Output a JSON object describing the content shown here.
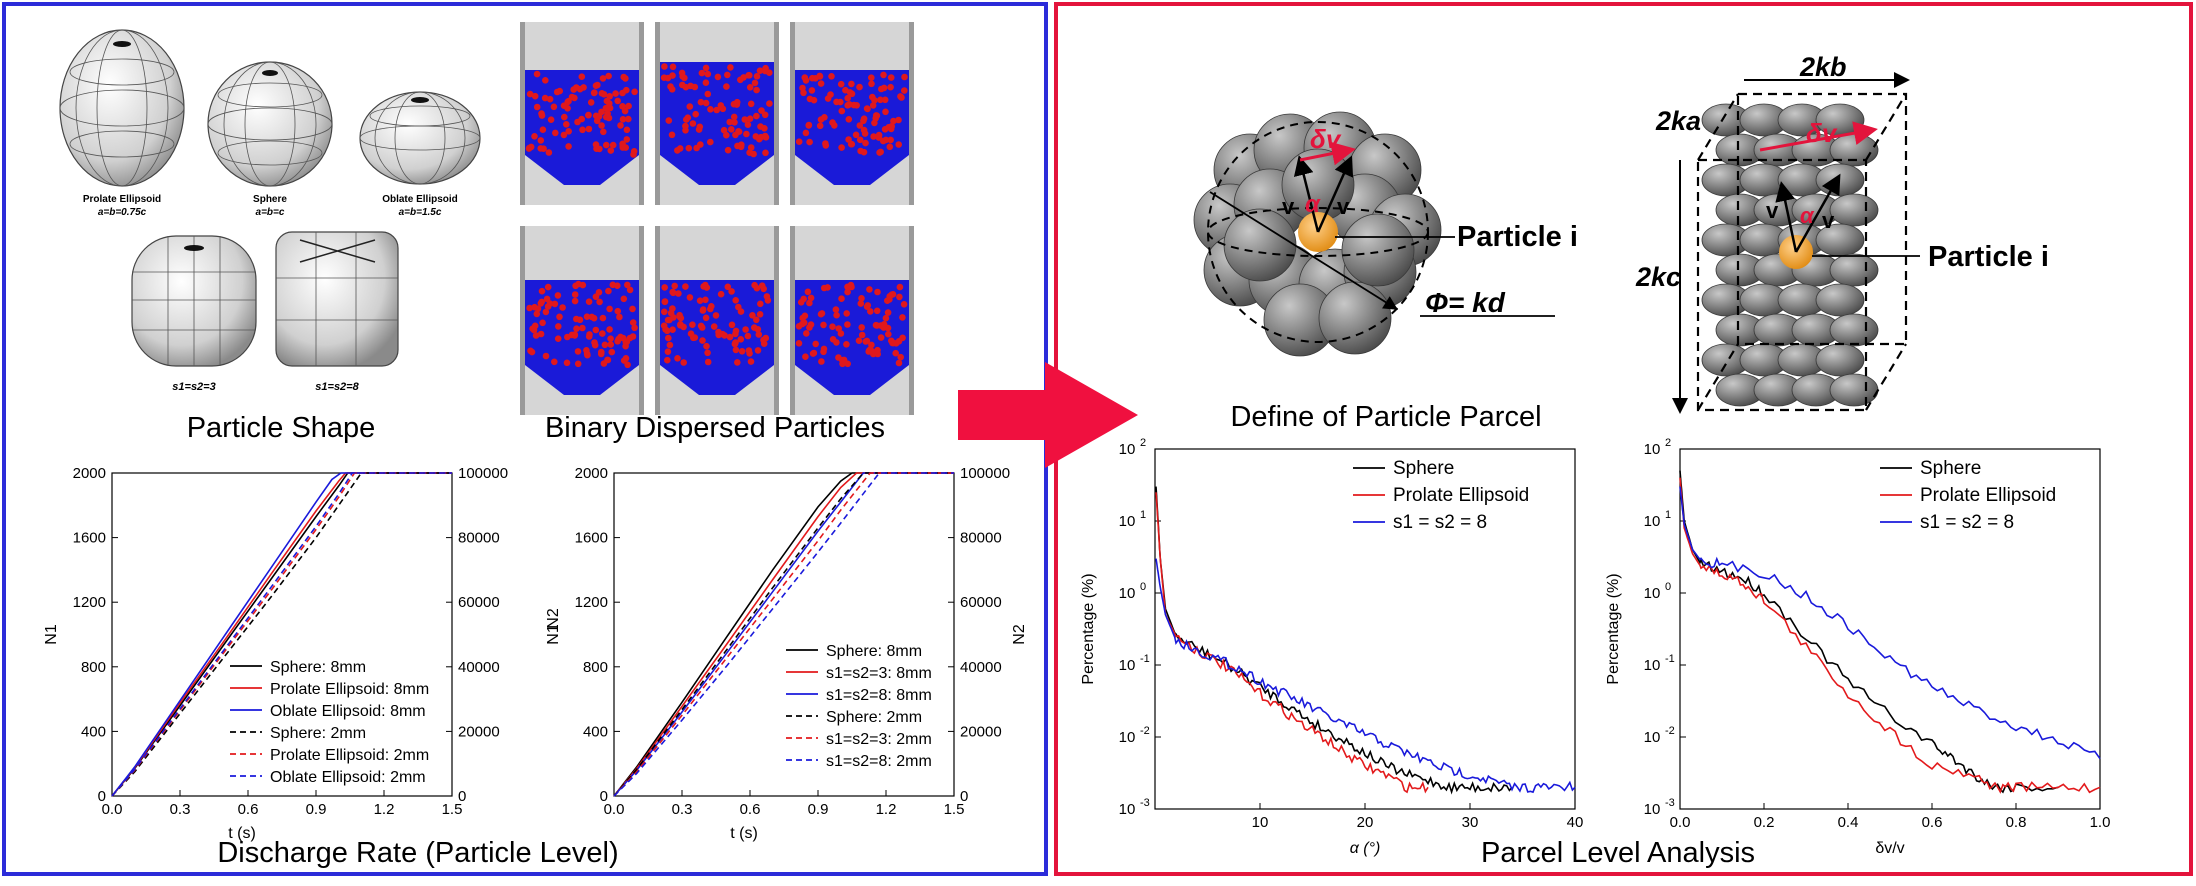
{
  "titles": {
    "particle_shape": "Particle Shape",
    "binary": "Binary Dispersed Particles",
    "discharge": "Discharge Rate (Particle Level)",
    "define_parcel": "Define of Particle Parcel",
    "parcel_analysis": "Parcel Level Analysis"
  },
  "shapes": [
    {
      "name": "Prolate Ellipsoid",
      "eq": "a=b=0.75c"
    },
    {
      "name": "Sphere",
      "eq": "a=b=c"
    },
    {
      "name": "Oblate Ellipsoid",
      "eq": "a=b=1.5c"
    },
    {
      "name": "",
      "eq": "s1=s2=3"
    },
    {
      "name": "",
      "eq": "s1=s2=8"
    }
  ],
  "parcel_diagram": {
    "sphere_labels": {
      "dv": "δv",
      "alpha": "α",
      "v": "v",
      "particle": "Particle i",
      "phi": "Φ= kd"
    },
    "box_labels": {
      "kb": "2kb",
      "ka": "2ka",
      "kc": "2kc",
      "dv": "δv",
      "alpha": "α",
      "v": "v",
      "particle": "Particle i"
    }
  },
  "colors": {
    "blue_frame": "#2b2bd9",
    "red_frame": "#e3143c",
    "arrow": "#f0103f",
    "particle_red": "#e0181c",
    "particle_blue": "#1a1ad8"
  },
  "chart_data": [
    {
      "type": "line",
      "xlabel": "t (s)",
      "ylabel": "N1",
      "y2label": "",
      "xlim": [
        0,
        1.5
      ],
      "ylim": [
        0,
        2000
      ],
      "y2lim": [
        0,
        100000
      ],
      "xticks": [
        "0.0",
        "0.3",
        "0.6",
        "0.9",
        "1.2",
        "1.5"
      ],
      "yticks": [
        "0",
        "400",
        "800",
        "1200",
        "1600",
        "2000"
      ],
      "y2ticks": [
        "0",
        "20000",
        "40000",
        "60000",
        "80000",
        "100000"
      ],
      "series": [
        {
          "name": "Sphere: 8mm",
          "color": "#000000",
          "dash": false,
          "x": [
            0,
            0.1,
            0.3,
            0.5,
            0.7,
            0.9,
            1.0,
            1.04,
            1.5
          ],
          "y": [
            0,
            170,
            560,
            950,
            1340,
            1730,
            1920,
            2000,
            2000
          ]
        },
        {
          "name": "Prolate Ellipsoid: 8mm",
          "color": "#e31a1c",
          "dash": false,
          "x": [
            0,
            0.1,
            0.3,
            0.5,
            0.7,
            0.9,
            1.0,
            1.03,
            1.5
          ],
          "y": [
            0,
            175,
            575,
            970,
            1370,
            1765,
            1950,
            2000,
            2000
          ]
        },
        {
          "name": "Oblate Ellipsoid: 8mm",
          "color": "#1a1adb",
          "dash": false,
          "x": [
            0,
            0.1,
            0.3,
            0.5,
            0.7,
            0.9,
            0.97,
            1.01,
            1.5
          ],
          "y": [
            0,
            180,
            590,
            1000,
            1410,
            1820,
            1960,
            2000,
            2000
          ]
        },
        {
          "name": "Sphere: 2mm",
          "color": "#000000",
          "dash": true,
          "x": [
            0,
            0.1,
            0.3,
            0.5,
            0.7,
            0.9,
            1.0,
            1.1,
            1.5
          ],
          "y": [
            0,
            150,
            510,
            870,
            1230,
            1600,
            1800,
            2000,
            2000
          ]
        },
        {
          "name": "Prolate Ellipsoid: 2mm",
          "color": "#e31a1c",
          "dash": true,
          "x": [
            0,
            0.1,
            0.3,
            0.5,
            0.7,
            0.9,
            1.0,
            1.07,
            1.5
          ],
          "y": [
            0,
            160,
            530,
            900,
            1270,
            1650,
            1850,
            2000,
            2000
          ]
        },
        {
          "name": "Oblate Ellipsoid: 2mm",
          "color": "#1a1adb",
          "dash": true,
          "x": [
            0,
            0.1,
            0.3,
            0.5,
            0.7,
            0.9,
            1.0,
            1.06,
            1.5
          ],
          "y": [
            0,
            165,
            540,
            915,
            1290,
            1670,
            1870,
            2000,
            2000
          ]
        }
      ]
    },
    {
      "type": "line",
      "xlabel": "t (s)",
      "ylabel": "N1",
      "ylabel2": "N2",
      "y2label": "N2",
      "xlim": [
        0,
        1.5
      ],
      "ylim": [
        0,
        2000
      ],
      "y2lim": [
        0,
        100000
      ],
      "xticks": [
        "0.0",
        "0.3",
        "0.6",
        "0.9",
        "1.2",
        "1.5"
      ],
      "yticks": [
        "0",
        "400",
        "800",
        "1200",
        "1600",
        "2000"
      ],
      "y2ticks": [
        "0",
        "20000",
        "40000",
        "60000",
        "80000",
        "100000"
      ],
      "series": [
        {
          "name": "Sphere: 8mm",
          "color": "#000000",
          "dash": false,
          "x": [
            0,
            0.1,
            0.3,
            0.5,
            0.7,
            0.9,
            1.0,
            1.05,
            1.5
          ],
          "y": [
            0,
            180,
            580,
            990,
            1400,
            1790,
            1950,
            2000,
            2000
          ]
        },
        {
          "name": "s1=s2=3: 8mm",
          "color": "#e31a1c",
          "dash": false,
          "x": [
            0,
            0.1,
            0.3,
            0.5,
            0.7,
            0.9,
            1.0,
            1.07,
            1.5
          ],
          "y": [
            0,
            170,
            555,
            945,
            1340,
            1730,
            1910,
            2000,
            2000
          ]
        },
        {
          "name": "s1=s2=8: 8mm",
          "color": "#1a1adb",
          "dash": false,
          "x": [
            0,
            0.1,
            0.3,
            0.5,
            0.7,
            0.9,
            1.0,
            1.1,
            1.5
          ],
          "y": [
            0,
            160,
            520,
            890,
            1265,
            1640,
            1820,
            2000,
            2000
          ]
        },
        {
          "name": "Sphere: 2mm",
          "color": "#000000",
          "dash": true,
          "x": [
            0,
            0.1,
            0.3,
            0.5,
            0.7,
            0.9,
            1.0,
            1.1,
            1.5
          ],
          "y": [
            0,
            165,
            535,
            910,
            1290,
            1660,
            1840,
            2000,
            2000
          ]
        },
        {
          "name": "s1=s2=3: 2mm",
          "color": "#e31a1c",
          "dash": true,
          "x": [
            0,
            0.1,
            0.3,
            0.5,
            0.7,
            0.9,
            1.0,
            1.13,
            1.5
          ],
          "y": [
            0,
            150,
            500,
            860,
            1220,
            1580,
            1770,
            2000,
            2000
          ]
        },
        {
          "name": "s1=s2=8: 2mm",
          "color": "#1a1adb",
          "dash": true,
          "x": [
            0,
            0.1,
            0.3,
            0.5,
            0.7,
            0.9,
            1.0,
            1.17,
            1.5
          ],
          "y": [
            0,
            140,
            470,
            810,
            1160,
            1510,
            1690,
            2000,
            2000
          ]
        }
      ]
    },
    {
      "type": "line",
      "xlabel": "α (°)",
      "ylabel": "Percentage (%)",
      "yscale": "log",
      "xlim": [
        0,
        40
      ],
      "ylim": [
        0.001,
        100
      ],
      "xticks": [
        "10",
        "20",
        "30",
        "40"
      ],
      "yticks": [
        "10^-3",
        "10^-2",
        "10^-1",
        "10^0",
        "10^1",
        "10^2"
      ],
      "series": [
        {
          "name": "Sphere",
          "color": "#000000",
          "x": [
            0.1,
            0.5,
            1,
            2,
            4,
            6,
            8,
            10,
            12,
            14,
            16,
            18,
            20,
            22,
            24,
            26,
            28,
            30,
            32,
            34
          ],
          "y": [
            30,
            3,
            0.6,
            0.25,
            0.17,
            0.12,
            0.08,
            0.05,
            0.032,
            0.02,
            0.013,
            0.009,
            0.006,
            0.004,
            0.003,
            0.0025,
            0.002,
            0.002,
            0.002,
            0.002
          ]
        },
        {
          "name": "Prolate Ellipsoid",
          "color": "#e31a1c",
          "x": [
            0.1,
            0.5,
            1,
            2,
            4,
            6,
            8,
            10,
            12,
            14,
            16,
            18,
            20,
            22,
            24,
            26
          ],
          "y": [
            25,
            3,
            0.5,
            0.25,
            0.16,
            0.11,
            0.07,
            0.04,
            0.025,
            0.015,
            0.01,
            0.006,
            0.004,
            0.003,
            0.002,
            0.002
          ]
        },
        {
          "name": "s1 = s2 = 8",
          "color": "#1a1adb",
          "x": [
            0.1,
            0.5,
            1,
            2,
            4,
            6,
            8,
            10,
            12,
            14,
            16,
            18,
            20,
            22,
            24,
            26,
            28,
            30,
            32,
            34,
            36,
            38,
            40
          ],
          "y": [
            3,
            1.2,
            0.5,
            0.22,
            0.16,
            0.12,
            0.09,
            0.06,
            0.042,
            0.03,
            0.021,
            0.015,
            0.011,
            0.008,
            0.006,
            0.0045,
            0.0035,
            0.003,
            0.0025,
            0.002,
            0.002,
            0.002,
            0.002
          ]
        }
      ]
    },
    {
      "type": "line",
      "xlabel": "δv/v",
      "ylabel": "Percentage (%)",
      "yscale": "log",
      "xlim": [
        0,
        1.0
      ],
      "ylim": [
        0.001,
        100
      ],
      "xticks": [
        "0.0",
        "0.2",
        "0.4",
        "0.6",
        "0.8",
        "1.0"
      ],
      "yticks": [
        "10^-3",
        "10^-2",
        "10^-1",
        "10^0",
        "10^1",
        "10^2"
      ],
      "series": [
        {
          "name": "Sphere",
          "color": "#000000",
          "x": [
            0,
            0.01,
            0.03,
            0.05,
            0.1,
            0.15,
            0.2,
            0.3,
            0.4,
            0.5,
            0.6,
            0.65,
            0.7,
            0.75,
            0.8,
            0.9
          ],
          "y": [
            50,
            10,
            4,
            2.5,
            2,
            1.6,
            1,
            0.25,
            0.06,
            0.02,
            0.008,
            0.005,
            0.003,
            0.002,
            0.002,
            0.002
          ]
        },
        {
          "name": "Prolate Ellipsoid",
          "color": "#e31a1c",
          "x": [
            0,
            0.01,
            0.03,
            0.05,
            0.1,
            0.15,
            0.2,
            0.3,
            0.4,
            0.5,
            0.6,
            0.7,
            0.75,
            0.8,
            0.9,
            1.0
          ],
          "y": [
            40,
            8,
            3.5,
            2.3,
            1.8,
            1.4,
            0.8,
            0.18,
            0.04,
            0.012,
            0.004,
            0.003,
            0.002,
            0.002,
            0.002,
            0.002
          ]
        },
        {
          "name": "s1 = s2 = 8",
          "color": "#1a1adb",
          "x": [
            0,
            0.01,
            0.03,
            0.05,
            0.1,
            0.2,
            0.3,
            0.4,
            0.5,
            0.6,
            0.7,
            0.8,
            0.9,
            1.0
          ],
          "y": [
            30,
            9,
            4,
            2.8,
            2.5,
            1.9,
            0.9,
            0.35,
            0.12,
            0.05,
            0.025,
            0.014,
            0.009,
            0.005
          ]
        }
      ]
    }
  ]
}
